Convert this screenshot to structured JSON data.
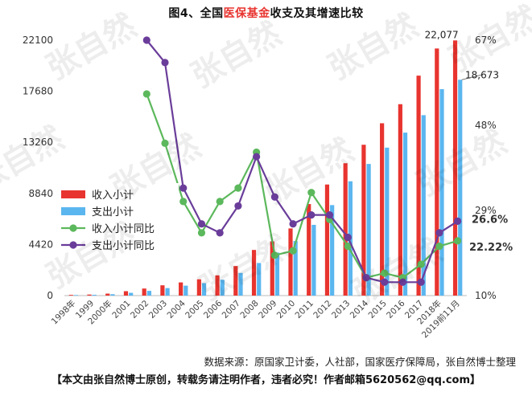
{
  "title": {
    "prefix": "图4、全国",
    "highlight": "医保基金",
    "suffix": "收支及其增速比较"
  },
  "source": "数据来源：原国家卫计委，人社部，国家医疗保障局，张自然博士整理",
  "footer": "【本文由张自然博士原创，转载务请注明作者，违者必究！作者邮箱5620562@qq.com】",
  "watermark": "张自然",
  "colors": {
    "income": "#e8342f",
    "expense": "#5bb6ef",
    "income_growth": "#5cb85c",
    "expense_growth": "#6a3d9a"
  },
  "chart_data": {
    "type": "bar",
    "categories": [
      "1998年",
      "1999",
      "2000年",
      "2001",
      "2002",
      "2003",
      "2004",
      "2005",
      "2006",
      "2007",
      "2008",
      "2009",
      "2010",
      "2011",
      "2012",
      "2013",
      "2014",
      "2015",
      "2016",
      "2017",
      "2018年",
      "2019前11月"
    ],
    "y_left": {
      "ticks": [
        0,
        4420,
        8840,
        13260,
        17680,
        22100
      ],
      "ylim": [
        0,
        22100
      ]
    },
    "y_right": {
      "ticks": [
        "10%",
        "29%",
        "48%",
        "67%"
      ],
      "ylim": [
        10,
        67
      ]
    },
    "series": [
      {
        "name": "收入小计",
        "kind": "bar",
        "axis": "left",
        "values": [
          60,
          90,
          170,
          380,
          610,
          890,
          1140,
          1410,
          1750,
          2560,
          3950,
          4690,
          5810,
          7920,
          9610,
          11450,
          13050,
          14910,
          16560,
          19030,
          21380,
          22077
        ]
      },
      {
        "name": "支出小计",
        "kind": "bar",
        "axis": "left",
        "values": [
          50,
          70,
          120,
          240,
          410,
          650,
          860,
          1080,
          1370,
          1960,
          2820,
          3720,
          4720,
          6120,
          7830,
          9890,
          11390,
          12800,
          14100,
          15610,
          17860,
          18673
        ]
      },
      {
        "name": "收入小计同比",
        "kind": "line",
        "axis": "right",
        "values": [
          null,
          null,
          null,
          null,
          55,
          44,
          31,
          24,
          31,
          34,
          42,
          19,
          20,
          33,
          27,
          21,
          14,
          15,
          14,
          17,
          21,
          22.22
        ]
      },
      {
        "name": "支出小计同比",
        "kind": "line",
        "axis": "right",
        "values": [
          null,
          null,
          null,
          null,
          67,
          62,
          34,
          26,
          24,
          30,
          41,
          32,
          26,
          28,
          28,
          23,
          14,
          13,
          13,
          13,
          24,
          26.6
        ]
      }
    ],
    "annotations": [
      {
        "text": "22,077",
        "series": "收入小计",
        "category": "2019前11月"
      },
      {
        "text": "18,673",
        "series": "支出小计",
        "category": "2019前11月"
      },
      {
        "text": "26.6%",
        "series": "支出小计同比",
        "category": "2019前11月"
      },
      {
        "text": "22.22%",
        "series": "收入小计同比",
        "category": "2019前11月"
      }
    ],
    "legend": {
      "placement": "left-middle"
    },
    "grid": false
  }
}
